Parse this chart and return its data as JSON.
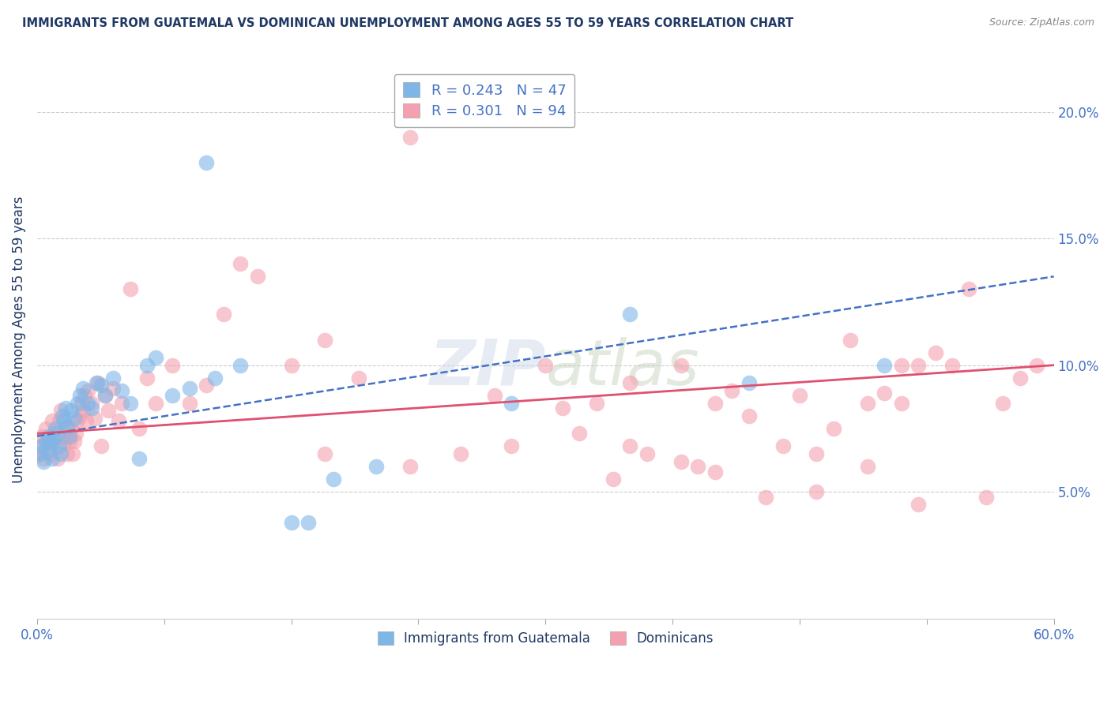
{
  "title": "IMMIGRANTS FROM GUATEMALA VS DOMINICAN UNEMPLOYMENT AMONG AGES 55 TO 59 YEARS CORRELATION CHART",
  "source": "Source: ZipAtlas.com",
  "xlabel_blue": "Immigrants from Guatemala",
  "xlabel_pink": "Dominicans",
  "ylabel": "Unemployment Among Ages 55 to 59 years",
  "xlim": [
    0.0,
    0.6
  ],
  "ylim": [
    0.0,
    0.22
  ],
  "xticks": [
    0.0,
    0.075,
    0.15,
    0.225,
    0.3,
    0.375,
    0.45,
    0.525,
    0.6
  ],
  "xticklabels_show": {
    "0": "0.0%",
    "8": "60.0%"
  },
  "yticks_right": [
    0.05,
    0.1,
    0.15,
    0.2
  ],
  "yticklabels_right": [
    "5.0%",
    "10.0%",
    "15.0%",
    "20.0%"
  ],
  "r_blue": 0.243,
  "n_blue": 47,
  "r_pink": 0.301,
  "n_pink": 94,
  "color_blue": "#7EB6E8",
  "color_pink": "#F4A0B0",
  "color_text_blue": "#4472C4",
  "color_text_pink": "#E05070",
  "color_title": "#1F3864",
  "scatter_blue_x": [
    0.002,
    0.003,
    0.004,
    0.005,
    0.006,
    0.007,
    0.008,
    0.009,
    0.01,
    0.011,
    0.012,
    0.013,
    0.014,
    0.015,
    0.016,
    0.017,
    0.018,
    0.019,
    0.02,
    0.022,
    0.024,
    0.025,
    0.027,
    0.03,
    0.032,
    0.035,
    0.038,
    0.04,
    0.045,
    0.05,
    0.055,
    0.06,
    0.065,
    0.07,
    0.08,
    0.09,
    0.1,
    0.105,
    0.12,
    0.15,
    0.16,
    0.175,
    0.2,
    0.28,
    0.35,
    0.42,
    0.5
  ],
  "scatter_blue_y": [
    0.065,
    0.068,
    0.062,
    0.07,
    0.066,
    0.072,
    0.069,
    0.063,
    0.071,
    0.075,
    0.073,
    0.068,
    0.065,
    0.08,
    0.078,
    0.083,
    0.076,
    0.072,
    0.082,
    0.079,
    0.085,
    0.088,
    0.091,
    0.085,
    0.083,
    0.093,
    0.092,
    0.088,
    0.095,
    0.09,
    0.085,
    0.063,
    0.1,
    0.103,
    0.088,
    0.091,
    0.18,
    0.095,
    0.1,
    0.038,
    0.038,
    0.055,
    0.06,
    0.085,
    0.12,
    0.093,
    0.1
  ],
  "scatter_pink_x": [
    0.001,
    0.002,
    0.003,
    0.004,
    0.005,
    0.006,
    0.007,
    0.008,
    0.009,
    0.01,
    0.011,
    0.012,
    0.013,
    0.014,
    0.015,
    0.016,
    0.017,
    0.018,
    0.019,
    0.02,
    0.021,
    0.022,
    0.023,
    0.024,
    0.025,
    0.026,
    0.027,
    0.028,
    0.029,
    0.03,
    0.032,
    0.034,
    0.036,
    0.038,
    0.04,
    0.042,
    0.045,
    0.048,
    0.05,
    0.055,
    0.06,
    0.065,
    0.07,
    0.08,
    0.09,
    0.1,
    0.11,
    0.12,
    0.13,
    0.15,
    0.17,
    0.19,
    0.22,
    0.28,
    0.3,
    0.33,
    0.35,
    0.38,
    0.4,
    0.42,
    0.45,
    0.47,
    0.48,
    0.5,
    0.51,
    0.52,
    0.53,
    0.55,
    0.57,
    0.58,
    0.59,
    0.34,
    0.36,
    0.39,
    0.41,
    0.44,
    0.46,
    0.49,
    0.51,
    0.54,
    0.56,
    0.17,
    0.22,
    0.25,
    0.27,
    0.31,
    0.32,
    0.35,
    0.38,
    0.4,
    0.43,
    0.46,
    0.49,
    0.52
  ],
  "scatter_pink_y": [
    0.065,
    0.068,
    0.072,
    0.063,
    0.075,
    0.07,
    0.069,
    0.065,
    0.078,
    0.073,
    0.068,
    0.063,
    0.078,
    0.082,
    0.072,
    0.069,
    0.075,
    0.065,
    0.07,
    0.075,
    0.065,
    0.07,
    0.073,
    0.078,
    0.08,
    0.085,
    0.082,
    0.088,
    0.078,
    0.09,
    0.085,
    0.079,
    0.093,
    0.068,
    0.088,
    0.082,
    0.091,
    0.078,
    0.085,
    0.13,
    0.075,
    0.095,
    0.085,
    0.1,
    0.085,
    0.092,
    0.12,
    0.14,
    0.135,
    0.1,
    0.11,
    0.095,
    0.19,
    0.068,
    0.1,
    0.085,
    0.093,
    0.1,
    0.085,
    0.08,
    0.088,
    0.075,
    0.11,
    0.089,
    0.1,
    0.1,
    0.105,
    0.13,
    0.085,
    0.095,
    0.1,
    0.055,
    0.065,
    0.06,
    0.09,
    0.068,
    0.05,
    0.085,
    0.085,
    0.1,
    0.048,
    0.065,
    0.06,
    0.065,
    0.088,
    0.083,
    0.073,
    0.068,
    0.062,
    0.058,
    0.048,
    0.065,
    0.06,
    0.045
  ],
  "trendline_blue_x0": 0.0,
  "trendline_blue_y0": 0.072,
  "trendline_blue_x1": 0.6,
  "trendline_blue_y1": 0.135,
  "trendline_pink_x0": 0.0,
  "trendline_pink_y0": 0.073,
  "trendline_pink_x1": 0.6,
  "trendline_pink_y1": 0.1
}
